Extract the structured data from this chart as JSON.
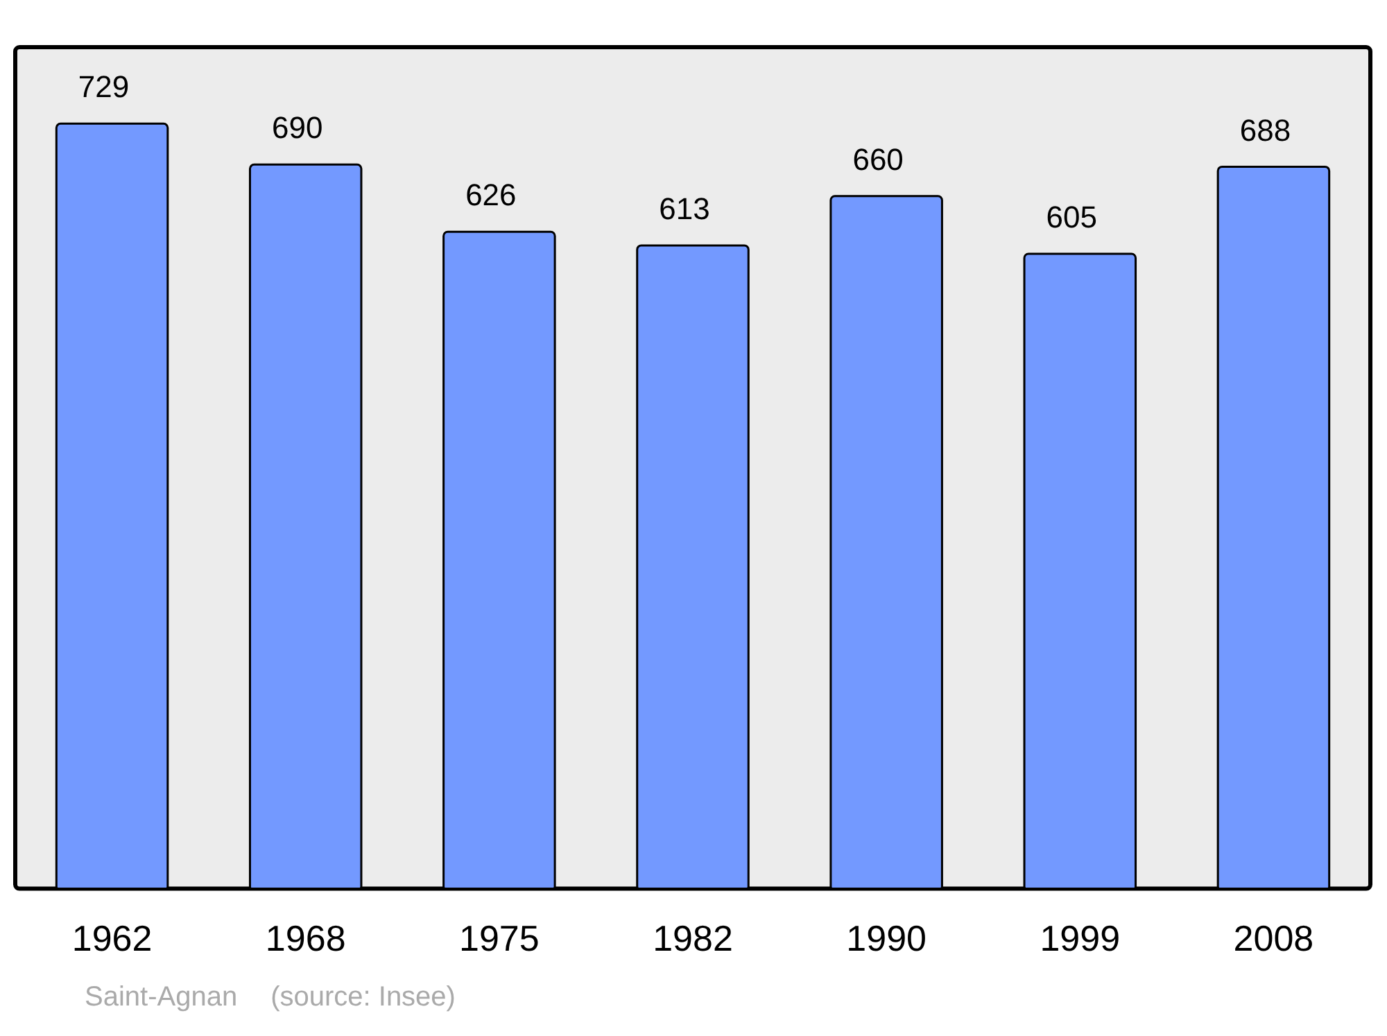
{
  "chart_data": {
    "type": "bar",
    "categories": [
      "1962",
      "1968",
      "1975",
      "1982",
      "1990",
      "1999",
      "2008"
    ],
    "values": [
      729,
      690,
      626,
      613,
      660,
      605,
      688
    ],
    "color": "#7399ff",
    "data_labels": true,
    "grid": false,
    "legend": false,
    "annotations": [
      "Saint-Agnan",
      "(source: Insee)"
    ]
  }
}
